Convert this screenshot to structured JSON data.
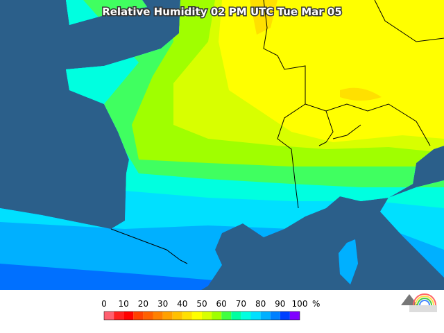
{
  "title": "Relative Humidity 02 PM UTC Tue Mar 05",
  "legend": {
    "ticks": [
      0,
      10,
      20,
      30,
      40,
      50,
      60,
      70,
      80,
      90,
      100
    ],
    "unit": "%",
    "colors": [
      "#ff6070",
      "#ff2020",
      "#ff0000",
      "#ff4000",
      "#ff6000",
      "#ff8000",
      "#ffa000",
      "#ffc000",
      "#ffe000",
      "#ffff00",
      "#d8ff00",
      "#a0ff00",
      "#40ff40",
      "#00ffa0",
      "#00ffe0",
      "#00e0ff",
      "#00b0ff",
      "#0080ff",
      "#0040ff",
      "#8000ff"
    ]
  }
}
